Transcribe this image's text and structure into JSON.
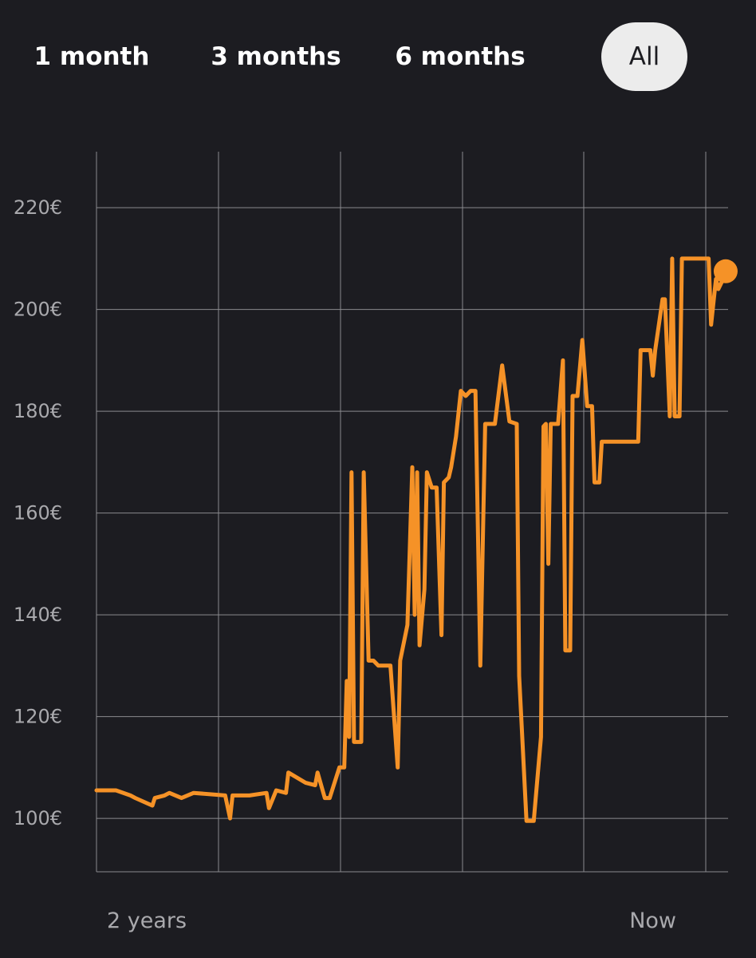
{
  "range_tabs": [
    {
      "label": "1 month",
      "selected": false
    },
    {
      "label": "3 months",
      "selected": false
    },
    {
      "label": "6 months",
      "selected": false
    },
    {
      "label": "All",
      "selected": true
    }
  ],
  "colors": {
    "background": "#1c1c21",
    "line": "#f59227",
    "grid": "#8a8a8e",
    "label": "#a9a9ad",
    "selected_tab_bg": "#ececec"
  },
  "chart_data": {
    "type": "line",
    "title": "",
    "xlabel": "",
    "ylabel": "",
    "x_tick_labels": [
      "2 years",
      "Now"
    ],
    "y_ticks": [
      100,
      120,
      140,
      160,
      180,
      200,
      220
    ],
    "y_tick_labels": [
      "100€",
      "120€",
      "140€",
      "160€",
      "180€",
      "200€",
      "220€"
    ],
    "ylim": [
      89.5,
      231
    ],
    "xlim": [
      0,
      26
    ],
    "grid": true,
    "series": [
      {
        "values_x": [
          0,
          0.8,
          1.4,
          1.6,
          2.3,
          2.4,
          2.8,
          3.0,
          3.5,
          4.0,
          5.3,
          5.5,
          5.6,
          6.3,
          7.0,
          7.1,
          7.4,
          7.8,
          7.9,
          8.6,
          9.0,
          9.1,
          9.4,
          9.6,
          10.0,
          10.2,
          10.3,
          10.4,
          10.5,
          10.6,
          10.9,
          11.0,
          11.2,
          11.4,
          11.6,
          11.7,
          12.1,
          12.4,
          12.5,
          12.8,
          13.0,
          13.1,
          13.2,
          13.3,
          13.5,
          13.6,
          13.8,
          14.0,
          14.2,
          14.3,
          14.5,
          14.6,
          14.8,
          15.0,
          15.2,
          15.4,
          15.6,
          15.8,
          16.0,
          16.1,
          16.2,
          16.4,
          16.7,
          17.0,
          17.3,
          17.4,
          17.7,
          18.0,
          18.3,
          18.4,
          18.5,
          18.6,
          18.7,
          18.8,
          19.0,
          19.2,
          19.3,
          19.5,
          19.6,
          19.7,
          19.8,
          20.0,
          20.2,
          20.4,
          20.5,
          20.7,
          20.8,
          21.0,
          21.2,
          21.3,
          22.3,
          22.4,
          22.8,
          22.9,
          23.0,
          23.3,
          23.4,
          23.6,
          23.7,
          23.8,
          24.0,
          24.1,
          24.2,
          24.3,
          24.5,
          25.0,
          25.2,
          25.3,
          25.5,
          25.6,
          25.8,
          25.9
        ],
        "values_y": [
          105.5,
          105.5,
          104.5,
          104,
          102.5,
          104,
          104.5,
          105,
          104,
          105,
          104.5,
          100,
          104.5,
          104.5,
          105,
          102,
          105.5,
          105,
          109,
          107,
          106.5,
          109,
          104,
          104,
          110,
          110,
          127,
          116,
          168,
          115,
          115,
          168,
          131,
          131,
          130,
          130,
          130,
          110,
          131,
          138,
          169,
          140,
          168,
          134,
          145,
          168,
          165,
          165,
          136,
          166,
          167,
          169,
          175,
          184,
          183,
          184,
          184,
          130,
          177.5,
          177.5,
          177.5,
          177.5,
          189,
          178,
          177.5,
          128,
          99.5,
          99.5,
          116,
          177,
          177.5,
          150,
          177.5,
          177.5,
          177.5,
          190,
          133,
          133,
          183,
          183,
          183,
          194,
          181,
          181,
          166,
          166,
          174,
          174,
          174,
          174,
          174,
          192,
          192,
          187,
          192,
          202,
          202,
          179,
          210,
          179,
          179,
          210,
          210,
          210,
          210,
          210,
          210,
          197,
          206,
          204,
          206,
          207.5
        ]
      }
    ]
  }
}
